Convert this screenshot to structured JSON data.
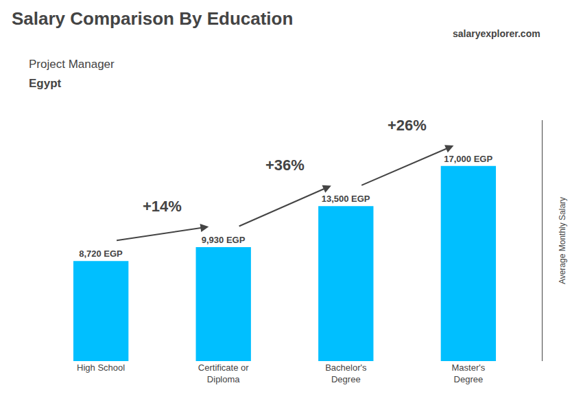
{
  "chart_data": {
    "type": "bar",
    "title": "Salary Comparison By Education",
    "subtitle": "Project Manager",
    "country": "Egypt",
    "logo": "salaryexplorer.com",
    "ylabel": "Average Monthly Salary",
    "categories": [
      "High School",
      "Certificate or\nDiploma",
      "Bachelor's\nDegree",
      "Master's\nDegree"
    ],
    "values": [
      8720,
      9930,
      13500,
      17000
    ],
    "value_labels": [
      "8,720 EGP",
      "9,930 EGP",
      "13,500 EGP",
      "17,000 EGP"
    ],
    "data_labels": true,
    "pct_labels": [
      "+14%",
      "+36%",
      "+26%"
    ],
    "color": "#00bfff",
    "ylim": [
      0,
      21000
    ],
    "yticks": [],
    "tick_labels": "x",
    "grid": false
  }
}
